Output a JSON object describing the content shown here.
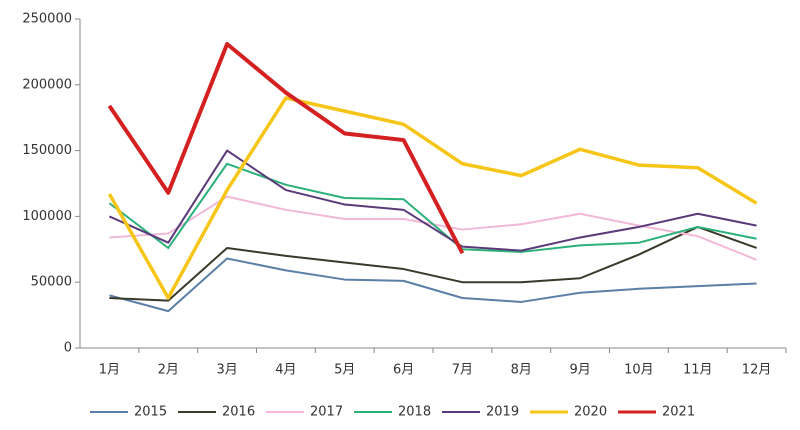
{
  "chart_data": {
    "type": "line",
    "categories": [
      "1月",
      "2月",
      "3月",
      "4月",
      "5月",
      "6月",
      "7月",
      "8月",
      "9月",
      "10月",
      "11月",
      "12月"
    ],
    "ylim": [
      0,
      250000
    ],
    "yticks": [
      0,
      50000,
      100000,
      150000,
      200000,
      250000
    ],
    "grid": false,
    "legend": "bottom",
    "series": [
      {
        "name": "2015",
        "color": "#5b7fa6",
        "values": [
          40000,
          28000,
          68000,
          59000,
          52000,
          51000,
          38000,
          35000,
          42000,
          45000,
          47000,
          49000
        ]
      },
      {
        "name": "2016",
        "color": "#3a3a2a",
        "values": [
          38000,
          36000,
          76000,
          70000,
          65000,
          60000,
          50000,
          50000,
          53000,
          71000,
          92000,
          76000
        ]
      },
      {
        "name": "2017",
        "color": "#f2b8d8",
        "values": [
          84000,
          87000,
          115000,
          105000,
          98000,
          98000,
          90000,
          94000,
          102000,
          93000,
          85000,
          67000
        ]
      },
      {
        "name": "2018",
        "color": "#2bb07a",
        "values": [
          110000,
          76000,
          140000,
          124000,
          114000,
          113000,
          75000,
          73000,
          78000,
          80000,
          92000,
          83000
        ]
      },
      {
        "name": "2019",
        "color": "#5a3a78",
        "values": [
          100000,
          80000,
          150000,
          120000,
          109000,
          105000,
          77000,
          74000,
          84000,
          92000,
          102000,
          93000
        ]
      },
      {
        "name": "2020",
        "color": "#f5c518",
        "values": [
          117000,
          38000,
          120000,
          190000,
          180000,
          170000,
          140000,
          131000,
          151000,
          139000,
          137000,
          110000
        ]
      },
      {
        "name": "2021",
        "color": "#d42020",
        "values": [
          184000,
          118000,
          231000,
          194000,
          163000,
          158000,
          72000,
          null,
          null,
          null,
          null,
          null
        ]
      }
    ]
  }
}
